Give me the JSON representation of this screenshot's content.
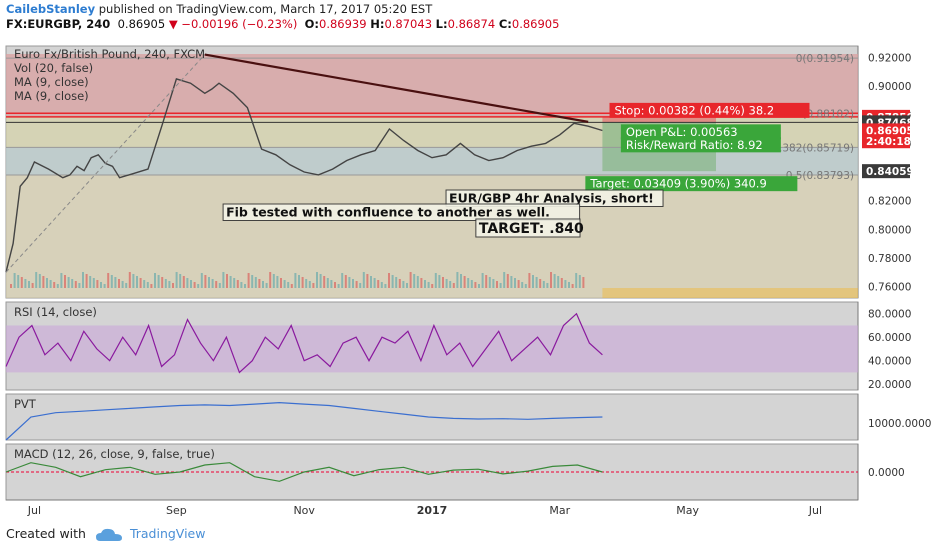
{
  "header": {
    "author": "CailebStanley",
    "published_text": "published on TradingView.com, March 17, 2017 05:20 EST",
    "symbol": "FX:EURGBP, 240",
    "last": "0.86905",
    "change": "▼ −0.00196 (−0.23%)",
    "o_label": "O:",
    "o": "0.86939",
    "h_label": "H:",
    "h": "0.87043",
    "l_label": "L:",
    "l": "0.86874",
    "c_label": "C:",
    "c": "0.86905"
  },
  "footer": {
    "created_with": "Created with",
    "brand": "TradingView"
  },
  "colors": {
    "panel_bg": "#d4d4d4",
    "price_line": "#444444",
    "trend": "#4a1010",
    "stop_zone": "#d9a0a0",
    "target_zone": "#b9c9c9",
    "rsi": "#8a1a9e",
    "pvt": "#3b6fd0",
    "macd": "#3a8a3a",
    "signal": "#d09030",
    "stop": "#e8262b",
    "target": "#3aa63a",
    "accent_orange": "#f2b632"
  },
  "chart_data": {
    "type": "line",
    "title": "Euro Fx/British Pound, 240, FXCM",
    "indicators": [
      "Vol (20, false)",
      "MA (9, close)",
      "MA (9, close)"
    ],
    "x_ticks": [
      "Jul",
      "Sep",
      "Nov",
      "2017",
      "Mar",
      "May",
      "Jul"
    ],
    "y_ticks": [
      "0.92000",
      "0.90000",
      "0.88000",
      "0.86000",
      "0.84000",
      "0.82000",
      "0.80000",
      "0.78000",
      "0.76000"
    ],
    "ylim": [
      0.752,
      0.928
    ],
    "series": [
      {
        "name": "EURGBP",
        "x": [
          0,
          0.5,
          1,
          1.5,
          2,
          3,
          4,
          4.5,
          5,
          5.5,
          6,
          6.5,
          7,
          7.5,
          8,
          9,
          10,
          11,
          12,
          13,
          14,
          14.5,
          15,
          16,
          17,
          18,
          19,
          20,
          21,
          22,
          23,
          24,
          25,
          26,
          27,
          28,
          29,
          30,
          31,
          32,
          33,
          34,
          35,
          36,
          37,
          38,
          39,
          40,
          41,
          42
        ],
        "y": [
          0.77,
          0.79,
          0.83,
          0.836,
          0.847,
          0.842,
          0.836,
          0.838,
          0.844,
          0.841,
          0.85,
          0.852,
          0.846,
          0.844,
          0.836,
          0.839,
          0.842,
          0.873,
          0.905,
          0.902,
          0.895,
          0.898,
          0.902,
          0.895,
          0.885,
          0.856,
          0.852,
          0.845,
          0.84,
          0.838,
          0.842,
          0.848,
          0.852,
          0.855,
          0.87,
          0.862,
          0.855,
          0.85,
          0.852,
          0.86,
          0.852,
          0.848,
          0.85,
          0.855,
          0.858,
          0.86,
          0.866,
          0.874,
          0.872,
          0.869
        ]
      }
    ],
    "trendline": {
      "x": [
        14,
        41
      ],
      "y": [
        0.922,
        0.875
      ]
    },
    "fib_levels": [
      {
        "label": "0(0.91954)",
        "value": 0.91954
      },
      {
        "label": "0.236(0.88102)",
        "value": 0.88102
      },
      {
        "label": "0.382(0.85719)",
        "value": 0.85719
      },
      {
        "label": "0.5(0.83793)",
        "value": 0.83793
      }
    ],
    "price_labels": [
      {
        "text": "0.87850",
        "value": 0.8785,
        "color": "#e8262b"
      },
      {
        "text": "0.87468",
        "value": 0.87468,
        "color": "#3a3a3a"
      },
      {
        "text": "0.86905",
        "value": 0.86905,
        "color": "#e8262b"
      },
      {
        "text": "2:40:18",
        "value": 0.8615,
        "color": "#e8262b"
      },
      {
        "text": "0.84059",
        "value": 0.84059,
        "color": "#3a3a3a"
      }
    ],
    "position": {
      "stop": "Stop: 0.00382 (0.44%) 38.2",
      "pnl": "Open P&L: 0.00563",
      "rr": "Risk/Reward Ratio: 8.92",
      "target": "Target: 0.03409 (3.90%) 340.9",
      "entry": 0.87468,
      "stop_level": 0.8785,
      "target_level": 0.84059
    },
    "annotations": [
      "EUR/GBP 4hr Analysis, short!",
      "Fib tested with confluence to another as well.",
      "TARGET: .840"
    ],
    "rsi": {
      "title": "RSI (14, close)",
      "y_ticks": [
        "80.0000",
        "60.0000",
        "40.0000",
        "20.0000"
      ],
      "ylim": [
        15,
        90
      ],
      "band": [
        30,
        70
      ],
      "values": [
        35,
        60,
        70,
        45,
        55,
        40,
        65,
        50,
        40,
        60,
        45,
        70,
        35,
        45,
        75,
        55,
        40,
        60,
        30,
        40,
        60,
        50,
        70,
        40,
        45,
        35,
        55,
        60,
        40,
        60,
        55,
        65,
        40,
        70,
        45,
        55,
        35,
        50,
        65,
        40,
        50,
        60,
        45,
        70,
        80,
        55,
        45
      ]
    },
    "pvt": {
      "title": "PVT",
      "y_ticks": [
        "10000.0000"
      ],
      "ylim": [
        4000,
        20000
      ],
      "values": [
        4000,
        12000,
        13500,
        14000,
        14500,
        15000,
        15500,
        16000,
        16200,
        16000,
        16500,
        17000,
        16500,
        16000,
        15000,
        14000,
        13000,
        12000,
        11500,
        11300,
        11400,
        11200,
        11500,
        11800,
        12000
      ]
    },
    "macd": {
      "title": "MACD (12, 26, close, 9, false, true)",
      "y_ticks": [
        "0.0000"
      ],
      "ylim": [
        -0.006,
        0.006
      ],
      "values": [
        0.0,
        0.002,
        0.001,
        -0.001,
        0.0005,
        0.001,
        -0.0005,
        0.0,
        0.0015,
        0.002,
        -0.001,
        -0.002,
        0.0,
        0.001,
        -0.0008,
        0.0005,
        0.001,
        -0.0005,
        0.0004,
        0.0006,
        -0.0004,
        0.0002,
        0.0012,
        0.0015,
        0.0
      ]
    }
  }
}
